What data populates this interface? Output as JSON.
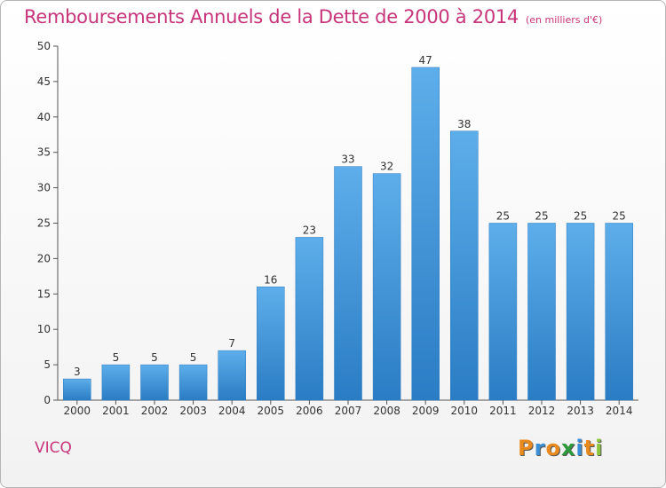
{
  "chart_data": {
    "type": "bar",
    "title": "Remboursements Annuels de la Dette de 2000 à 2014",
    "subtitle": "(en milliers d'€)",
    "categories": [
      "2000",
      "2001",
      "2002",
      "2003",
      "2004",
      "2005",
      "2006",
      "2007",
      "2008",
      "2009",
      "2010",
      "2011",
      "2012",
      "2013",
      "2014"
    ],
    "values": [
      3,
      5,
      5,
      5,
      7,
      16,
      23,
      33,
      32,
      47,
      38,
      25,
      25,
      25,
      25
    ],
    "ylim": [
      0,
      50
    ],
    "yticks": [
      0,
      5,
      10,
      15,
      20,
      25,
      30,
      35,
      40,
      45,
      50
    ],
    "grid": false,
    "data_labels": true,
    "bar_color": "#3a8fd6"
  },
  "commune": "VICQ",
  "logo": {
    "text": "Proxiti",
    "letters": [
      "P",
      "r",
      "o",
      "x",
      "i",
      "t",
      "i"
    ],
    "colors": [
      "#e98a1f",
      "#3a8fd6",
      "#e98a1f",
      "#2e9a3b",
      "#3a8fd6",
      "#e98a1f",
      "#8dc63f"
    ]
  }
}
